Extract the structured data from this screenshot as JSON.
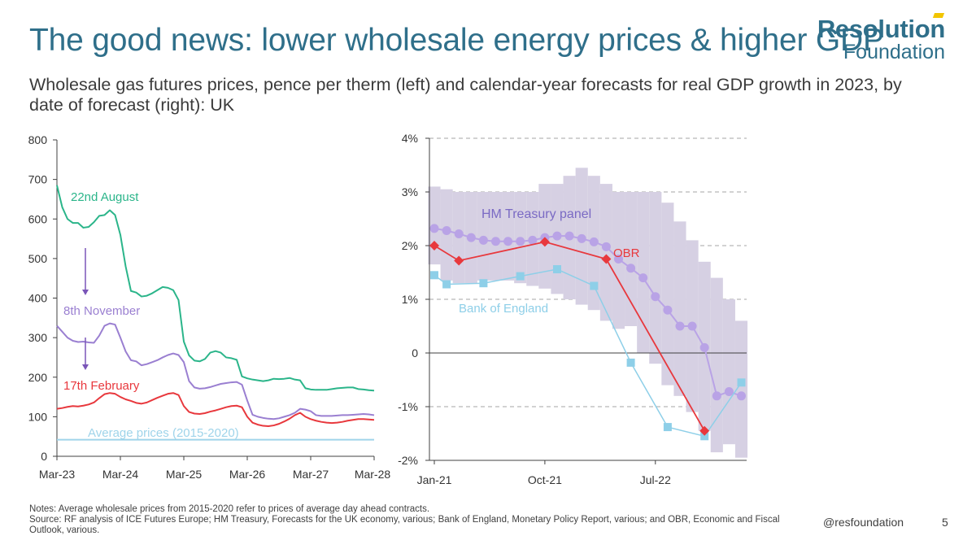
{
  "title": "The good news: lower wholesale energy prices & higher GDP",
  "subtitle": "Wholesale gas futures prices, pence per therm (left) and calendar-year forecasts for real GDP growth in 2023, by date of forecast (right): UK",
  "logo": {
    "line1": "Resolution",
    "line2": "Foundation"
  },
  "notes": {
    "line1": "Notes: Average wholesale prices from 2015-2020 refer to prices of average day ahead contracts.",
    "line2": "Source: RF analysis of ICE Futures Europe; HM Treasury, Forecasts for the UK economy, various; Bank of England, Monetary Policy Report, various; and OBR, Economic and Fiscal Outlook, various."
  },
  "footer": {
    "handle": "@resfoundation",
    "page": "5"
  },
  "colors": {
    "aug": "#2bb58a",
    "nov": "#9a7fd1",
    "feb": "#e8383d",
    "avg": "#9fd4ea",
    "panel_band": "#d6d0e3",
    "panel_line": "#b9a3e6",
    "panel_label": "#7a6ac4",
    "obr": "#e8383d",
    "boe": "#8ecfe8",
    "boe_label": "#8ecfe8",
    "axis": "#404040",
    "grid": "#a6a6a6"
  },
  "chart_data": [
    {
      "type": "line",
      "ylim": [
        0,
        800
      ],
      "yticks": [
        "0",
        "100",
        "200",
        "300",
        "400",
        "500",
        "600",
        "700",
        "800"
      ],
      "xlim": [
        0,
        60
      ],
      "xticks": [
        {
          "label": "Mar-23",
          "x": 0
        },
        {
          "label": "Mar-24",
          "x": 12
        },
        {
          "label": "Mar-25",
          "x": 24
        },
        {
          "label": "Mar-26",
          "x": 36
        },
        {
          "label": "Mar-27",
          "x": 48
        },
        {
          "label": "Mar-28",
          "x": 60
        }
      ],
      "series": [
        {
          "name": "22nd August",
          "key": "aug",
          "values": [
            685,
            630,
            600,
            590,
            590,
            578,
            580,
            592,
            608,
            610,
            622,
            610,
            560,
            480,
            418,
            414,
            404,
            406,
            412,
            420,
            428,
            426,
            420,
            395,
            290,
            255,
            242,
            240,
            246,
            262,
            266,
            262,
            250,
            248,
            244,
            202,
            197,
            194,
            192,
            190,
            192,
            196,
            195,
            196,
            198,
            194,
            192,
            172,
            169,
            168,
            168,
            168,
            170,
            172,
            173,
            174,
            174,
            170,
            169,
            167,
            166
          ]
        },
        {
          "name": "8th November",
          "key": "nov",
          "values": [
            330,
            315,
            300,
            292,
            289,
            290,
            288,
            287,
            305,
            330,
            336,
            333,
            300,
            265,
            243,
            240,
            230,
            233,
            238,
            243,
            250,
            256,
            260,
            256,
            238,
            190,
            174,
            171,
            172,
            175,
            179,
            183,
            185,
            187,
            188,
            181,
            141,
            105,
            100,
            97,
            95,
            94,
            96,
            100,
            104,
            110,
            120,
            118,
            114,
            104,
            102,
            102,
            102,
            103,
            104,
            104,
            105,
            106,
            107,
            106,
            104
          ]
        },
        {
          "name": "17th February",
          "key": "feb",
          "values": [
            120,
            122,
            125,
            127,
            126,
            128,
            131,
            136,
            147,
            157,
            160,
            158,
            150,
            144,
            140,
            135,
            133,
            136,
            142,
            148,
            153,
            158,
            160,
            155,
            127,
            112,
            108,
            107,
            109,
            113,
            116,
            120,
            124,
            127,
            128,
            124,
            100,
            85,
            80,
            77,
            76,
            78,
            82,
            88,
            95,
            104,
            110,
            100,
            94,
            90,
            87,
            85,
            84,
            85,
            87,
            90,
            92,
            94,
            94,
            93,
            92
          ]
        },
        {
          "name": "Average prices (2015-2020)",
          "key": "avg",
          "values": [
            42,
            42
          ]
        }
      ],
      "annotations": [
        {
          "text": "22nd August",
          "series": "aug"
        },
        {
          "text": "8th November",
          "series": "nov"
        },
        {
          "text": "17th February",
          "series": "feb"
        },
        {
          "text": "Average prices (2015-2020)",
          "series": "avg"
        }
      ]
    },
    {
      "type": "line",
      "ylim": [
        -2,
        4
      ],
      "yticks": [
        "-2%",
        "-1%",
        "0",
        "1%",
        "2%",
        "3%",
        "4%"
      ],
      "xticks": [
        {
          "label": "Jan-21",
          "x": 0
        },
        {
          "label": "Oct-21",
          "x": 9
        },
        {
          "label": "Jul-22",
          "x": 18
        }
      ],
      "xlim": [
        0,
        25
      ],
      "series": [
        {
          "name": "HM Treasury panel",
          "type": "band",
          "months": [
            0,
            1,
            2,
            3,
            4,
            5,
            6,
            7,
            8,
            9,
            10,
            11,
            12,
            13,
            14,
            15,
            16,
            17,
            18,
            19,
            20,
            21,
            22,
            23,
            24,
            25
          ],
          "high": [
            3.1,
            3.05,
            3.0,
            3.0,
            3.0,
            3.0,
            3.0,
            3.0,
            3.0,
            3.15,
            3.15,
            3.3,
            3.45,
            3.3,
            3.15,
            3.0,
            3.0,
            3.0,
            3.0,
            2.8,
            2.45,
            2.1,
            1.7,
            1.4,
            1.0,
            0.6
          ],
          "low": [
            1.65,
            1.35,
            1.3,
            1.3,
            1.35,
            1.35,
            1.35,
            1.3,
            1.25,
            1.2,
            1.1,
            1.0,
            0.9,
            0.8,
            0.6,
            0.45,
            0.5,
            0.0,
            -0.2,
            -0.6,
            -0.8,
            -1.1,
            -1.45,
            -1.85,
            -1.7,
            -1.95
          ]
        },
        {
          "name": "HM Treasury panel",
          "key": "hmt",
          "x": [
            0,
            1,
            2,
            3,
            4,
            5,
            6,
            7,
            8,
            9,
            10,
            11,
            12,
            13,
            14,
            15,
            16,
            17,
            18,
            19,
            20,
            21,
            22,
            23,
            24,
            25
          ],
          "values": [
            2.32,
            2.28,
            2.22,
            2.15,
            2.1,
            2.08,
            2.08,
            2.08,
            2.1,
            2.15,
            2.18,
            2.18,
            2.13,
            2.07,
            1.98,
            1.75,
            1.58,
            1.4,
            1.05,
            0.8,
            0.5,
            0.5,
            0.1,
            -0.8,
            -0.72,
            -0.8
          ]
        },
        {
          "name": "OBR",
          "key": "obr",
          "x": [
            0,
            2,
            9,
            14,
            22
          ],
          "values": [
            2.0,
            1.72,
            2.07,
            1.75,
            -1.45
          ]
        },
        {
          "name": "Bank of England",
          "key": "boe",
          "x": [
            0,
            1,
            4,
            7,
            10,
            13,
            16,
            19,
            22,
            25
          ],
          "values": [
            1.45,
            1.28,
            1.3,
            1.43,
            1.56,
            1.25,
            -0.18,
            -1.38,
            -1.55,
            -0.55
          ]
        }
      ]
    }
  ]
}
